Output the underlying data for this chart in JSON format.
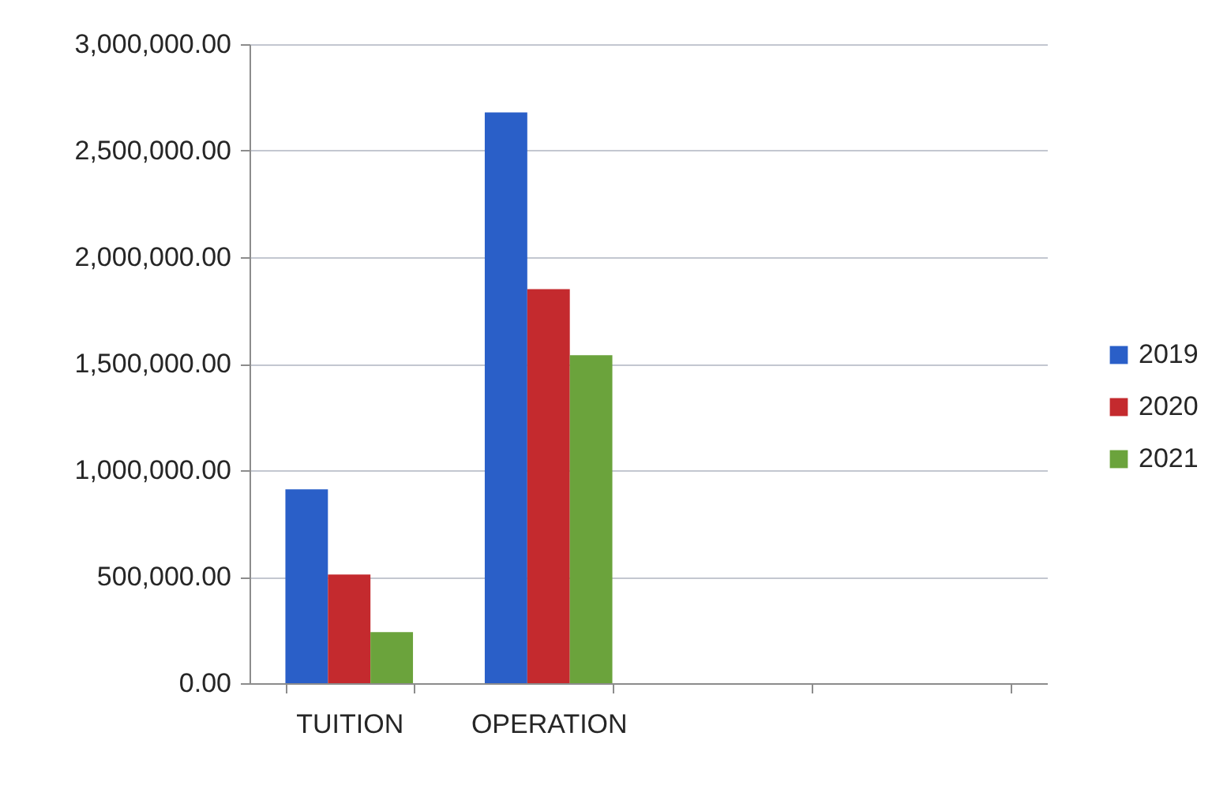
{
  "chart_data": {
    "type": "bar",
    "categories": [
      "TUITION",
      "OPERATION",
      null,
      null
    ],
    "series": [
      {
        "name": "2019",
        "color": "#2a5fc8",
        "values": [
          910000,
          2680000,
          null,
          null
        ]
      },
      {
        "name": "2020",
        "color": "#c42a2e",
        "values": [
          510000,
          1850000,
          null,
          null
        ]
      },
      {
        "name": "2021",
        "color": "#6ba33c",
        "values": [
          240000,
          1540000,
          null,
          null
        ]
      }
    ],
    "ylim": [
      0,
      3000000
    ],
    "yticks": [
      {
        "value": 0,
        "label": "0.00"
      },
      {
        "value": 500000,
        "label": "500,000.00"
      },
      {
        "value": 1000000,
        "label": "1,000,000.00"
      },
      {
        "value": 1500000,
        "label": "1,500,000.00"
      },
      {
        "value": 2000000,
        "label": "2,000,000.00"
      },
      {
        "value": 2500000,
        "label": "2,500,000.00"
      },
      {
        "value": 3000000,
        "label": "3,000,000.00"
      }
    ],
    "grid": "y",
    "legend": "right"
  }
}
